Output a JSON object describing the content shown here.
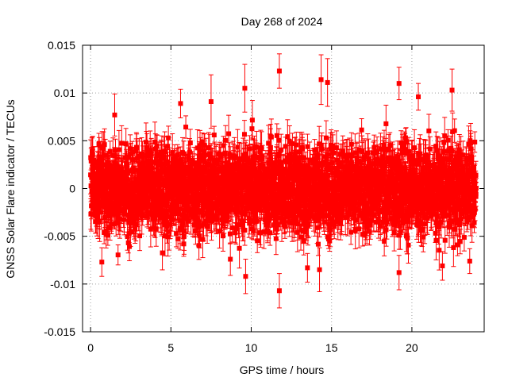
{
  "chart_data": {
    "type": "scatter",
    "title": "Day 268 of 2024",
    "xlabel": "GPS time / hours",
    "ylabel": "GNSS Solar Flare indicator / TECUs",
    "xlim": [
      -0.5,
      24.5
    ],
    "ylim": [
      -0.015,
      0.015
    ],
    "x_ticks": [
      0,
      5,
      10,
      15,
      20
    ],
    "x_tick_labels": [
      "0",
      "5",
      "10",
      "15",
      "20"
    ],
    "y_ticks": [
      -0.015,
      -0.01,
      -0.005,
      0,
      0.005,
      0.01,
      0.015
    ],
    "y_tick_labels": [
      "-0.015",
      "-0.01",
      "-0.005",
      "0",
      "0.005",
      "0.01",
      "0.015"
    ],
    "grid": true,
    "legend": "none",
    "series_color": "#ff0000",
    "series": [
      {
        "marker": "square",
        "error_bars": true,
        "x_range": [
          0,
          24
        ],
        "samples_per_hour": 120,
        "typical_spread": 0.0035,
        "typical_error": 0.0015,
        "notable_points": [
          {
            "x": 11.75,
            "y": 0.0123,
            "err": 0.0018
          },
          {
            "x": 14.35,
            "y": 0.0114,
            "err": 0.0026
          },
          {
            "x": 14.75,
            "y": 0.0111,
            "err": 0.0025
          },
          {
            "x": 19.2,
            "y": 0.011,
            "err": 0.0017
          },
          {
            "x": 9.6,
            "y": 0.0105,
            "err": 0.0025
          },
          {
            "x": 22.5,
            "y": 0.0103,
            "err": 0.0022
          },
          {
            "x": 20.4,
            "y": 0.0096,
            "err": 0.0014
          },
          {
            "x": 5.6,
            "y": 0.0089,
            "err": 0.0015
          },
          {
            "x": 7.5,
            "y": 0.0091,
            "err": 0.0028
          },
          {
            "x": 1.5,
            "y": 0.0077,
            "err": 0.0022
          },
          {
            "x": 11.75,
            "y": -0.0107,
            "err": 0.0018
          },
          {
            "x": 9.65,
            "y": -0.0092,
            "err": 0.0018
          },
          {
            "x": 19.2,
            "y": -0.0088,
            "err": 0.0018
          },
          {
            "x": 14.25,
            "y": -0.0085,
            "err": 0.0023
          },
          {
            "x": 13.5,
            "y": -0.0083,
            "err": 0.0015
          },
          {
            "x": 21.9,
            "y": -0.0081,
            "err": 0.0015
          },
          {
            "x": 0.7,
            "y": -0.0077,
            "err": 0.0015
          },
          {
            "x": 23.6,
            "y": -0.0076,
            "err": 0.0013
          },
          {
            "x": 8.7,
            "y": -0.0074,
            "err": 0.0017
          },
          {
            "x": 5.8,
            "y": -0.0058,
            "err": 0.0013
          }
        ]
      }
    ]
  }
}
